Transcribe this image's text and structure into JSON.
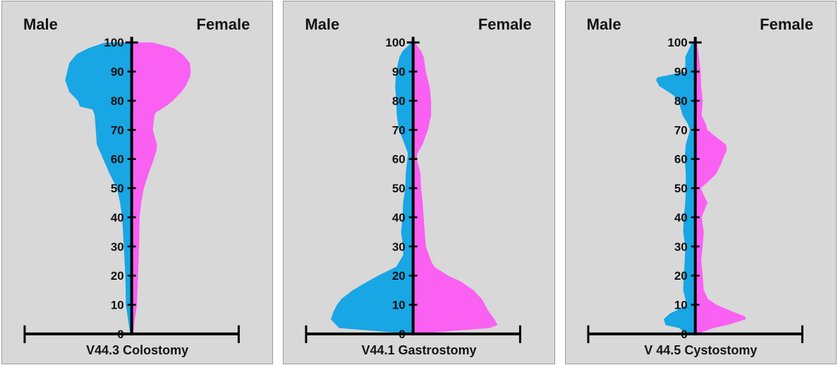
{
  "page": {
    "background": "#ffffff",
    "panel_background": "#D8D8D8",
    "panel_border": "#9B9B9B",
    "axis_color": "#000000",
    "text_color": "#141414"
  },
  "age_ticks": [
    0,
    10,
    20,
    30,
    40,
    50,
    60,
    70,
    80,
    90,
    100
  ],
  "chart_data": [
    {
      "type": "area",
      "subtype": "population-pyramid-violin",
      "title": "V44.3 Colostomy",
      "male_label": "Male",
      "female_label": "Female",
      "male_color": "#18A6E4",
      "female_color": "#FA60F2",
      "age_axis": {
        "min": 0,
        "max": 100,
        "tick_step": 10,
        "orientation": "vertical"
      },
      "width_units": "percent of half-axis width (100 = full half-width)",
      "series": [
        {
          "name": "Male",
          "side": "left",
          "points": [
            [
              0,
              1.5
            ],
            [
              5,
              3.5
            ],
            [
              10,
              5.5
            ],
            [
              20,
              6
            ],
            [
              30,
              7.5
            ],
            [
              40,
              9
            ],
            [
              45,
              11
            ],
            [
              50,
              14
            ],
            [
              55,
              21
            ],
            [
              60,
              27
            ],
            [
              65,
              33
            ],
            [
              70,
              34
            ],
            [
              75,
              35
            ],
            [
              77,
              37
            ],
            [
              78,
              49
            ],
            [
              80,
              51
            ],
            [
              83,
              59
            ],
            [
              87,
              63
            ],
            [
              90,
              61
            ],
            [
              93,
              59
            ],
            [
              96,
              52
            ],
            [
              98,
              41
            ],
            [
              100,
              25
            ]
          ]
        },
        {
          "name": "Female",
          "side": "right",
          "points": [
            [
              0,
              1.5
            ],
            [
              5,
              3
            ],
            [
              10,
              5
            ],
            [
              20,
              6
            ],
            [
              30,
              7
            ],
            [
              40,
              7.5
            ],
            [
              45,
              9
            ],
            [
              50,
              11.5
            ],
            [
              55,
              16
            ],
            [
              60,
              21
            ],
            [
              63,
              23.5
            ],
            [
              65,
              24
            ],
            [
              70,
              20
            ],
            [
              75,
              21.5
            ],
            [
              76,
              23
            ],
            [
              78,
              32
            ],
            [
              80,
              39
            ],
            [
              83,
              47
            ],
            [
              85,
              51
            ],
            [
              88,
              55
            ],
            [
              90,
              56
            ],
            [
              93,
              55
            ],
            [
              96,
              48
            ],
            [
              98,
              40
            ],
            [
              100,
              20
            ]
          ]
        }
      ]
    },
    {
      "type": "area",
      "subtype": "population-pyramid-violin",
      "title": "V44.1 Gastrostomy",
      "male_label": "Male",
      "female_label": "Female",
      "male_color": "#18A6E4",
      "female_color": "#FA60F2",
      "age_axis": {
        "min": 0,
        "max": 100,
        "tick_step": 10,
        "orientation": "vertical"
      },
      "width_units": "percent of half-axis width (100 = full half-width)",
      "series": [
        {
          "name": "Male",
          "side": "left",
          "points": [
            [
              0,
              1.5
            ],
            [
              2,
              70
            ],
            [
              5,
              78
            ],
            [
              8,
              75
            ],
            [
              10,
              72
            ],
            [
              12,
              68
            ],
            [
              15,
              57
            ],
            [
              18,
              43
            ],
            [
              20,
              33
            ],
            [
              23,
              16
            ],
            [
              27,
              9.5
            ],
            [
              30,
              9.5
            ],
            [
              35,
              11.5
            ],
            [
              40,
              10
            ],
            [
              45,
              9.5
            ],
            [
              50,
              7.5
            ],
            [
              55,
              7
            ],
            [
              60,
              5.5
            ],
            [
              62,
              5
            ],
            [
              65,
              8
            ],
            [
              70,
              13.5
            ],
            [
              75,
              15.5
            ],
            [
              80,
              16
            ],
            [
              85,
              17
            ],
            [
              90,
              16
            ],
            [
              95,
              13
            ],
            [
              97,
              10
            ],
            [
              100,
              1.5
            ]
          ]
        },
        {
          "name": "Female",
          "side": "right",
          "points": [
            [
              0,
              1.5
            ],
            [
              2,
              72
            ],
            [
              3,
              80
            ],
            [
              5,
              77
            ],
            [
              8,
              71
            ],
            [
              10,
              68
            ],
            [
              12,
              65
            ],
            [
              15,
              57
            ],
            [
              18,
              45
            ],
            [
              20,
              33
            ],
            [
              23,
              20
            ],
            [
              25,
              17
            ],
            [
              30,
              12
            ],
            [
              35,
              11
            ],
            [
              40,
              10
            ],
            [
              45,
              9
            ],
            [
              50,
              7.5
            ],
            [
              55,
              7
            ],
            [
              60,
              3.5
            ],
            [
              62,
              4
            ],
            [
              65,
              9
            ],
            [
              68,
              12
            ],
            [
              70,
              14
            ],
            [
              75,
              17
            ],
            [
              80,
              17
            ],
            [
              85,
              15.5
            ],
            [
              90,
              12
            ],
            [
              95,
              10
            ],
            [
              97,
              7.5
            ],
            [
              100,
              1.5
            ]
          ]
        }
      ]
    },
    {
      "type": "area",
      "subtype": "population-pyramid-violin",
      "title": "V 44.5 Cystostomy",
      "male_label": "Male",
      "female_label": "Female",
      "male_color": "#18A6E4",
      "female_color": "#FA60F2",
      "age_axis": {
        "min": 0,
        "max": 100,
        "tick_step": 10,
        "orientation": "vertical"
      },
      "width_units": "percent of half-axis width (100 = full half-width)",
      "series": [
        {
          "name": "Male",
          "side": "left",
          "points": [
            [
              0,
              9
            ],
            [
              2,
              15
            ],
            [
              3,
              28
            ],
            [
              5,
              30
            ],
            [
              7,
              24
            ],
            [
              8,
              18
            ],
            [
              10,
              8
            ],
            [
              15,
              11.5
            ],
            [
              20,
              11
            ],
            [
              25,
              10
            ],
            [
              30,
              9.5
            ],
            [
              35,
              11.5
            ],
            [
              40,
              11
            ],
            [
              45,
              9.5
            ],
            [
              50,
              9
            ],
            [
              55,
              9
            ],
            [
              60,
              10
            ],
            [
              65,
              9
            ],
            [
              70,
              5
            ],
            [
              72,
              7
            ],
            [
              75,
              12
            ],
            [
              80,
              16
            ],
            [
              82,
              21
            ],
            [
              85,
              34
            ],
            [
              87,
              37
            ],
            [
              88,
              36
            ],
            [
              90,
              9.5
            ],
            [
              95,
              9.5
            ],
            [
              100,
              3
            ]
          ]
        },
        {
          "name": "Female",
          "side": "right",
          "points": [
            [
              0,
              2
            ],
            [
              2,
              17
            ],
            [
              3,
              30
            ],
            [
              5,
              48
            ],
            [
              6,
              47
            ],
            [
              8,
              33
            ],
            [
              10,
              20
            ],
            [
              12,
              12
            ],
            [
              15,
              8
            ],
            [
              20,
              7
            ],
            [
              25,
              5.5
            ],
            [
              30,
              7
            ],
            [
              35,
              8
            ],
            [
              40,
              6
            ],
            [
              45,
              11.5
            ],
            [
              50,
              5
            ],
            [
              52,
              11.5
            ],
            [
              55,
              20
            ],
            [
              58,
              24
            ],
            [
              60,
              26
            ],
            [
              63,
              30
            ],
            [
              65,
              29
            ],
            [
              68,
              18
            ],
            [
              70,
              11.5
            ],
            [
              72,
              10
            ],
            [
              75,
              6
            ],
            [
              80,
              7
            ],
            [
              85,
              5.5
            ],
            [
              90,
              5
            ],
            [
              95,
              3.5
            ],
            [
              100,
              1.5
            ]
          ]
        }
      ]
    }
  ]
}
